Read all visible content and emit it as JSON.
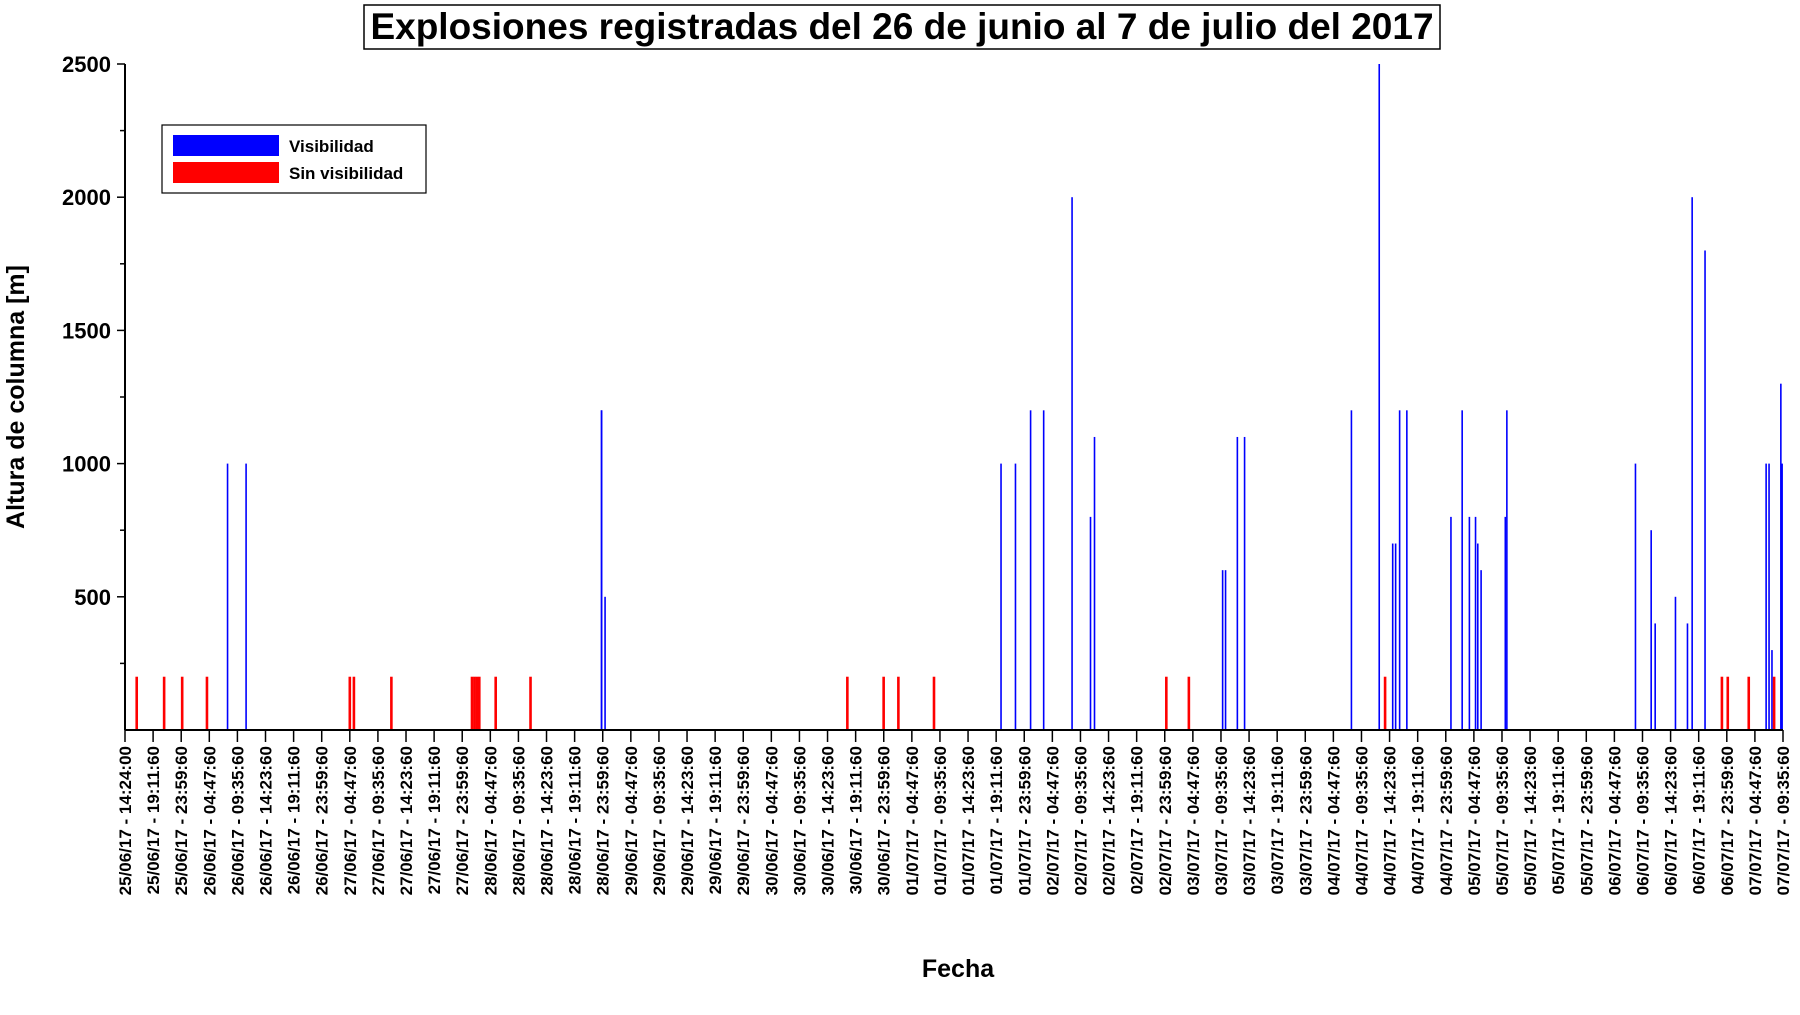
{
  "chart_data": {
    "type": "bar",
    "title": "Explosiones registradas del 26 de junio al 7 de julio del 2017",
    "xlabel": "Fecha",
    "ylabel": "Altura de columna [m]",
    "ylim": [
      0,
      2500
    ],
    "yticks": [
      500,
      1000,
      1500,
      2000,
      2500
    ],
    "grid": false,
    "legend_position": "top-left",
    "xlim": [
      "2017-06-25 14:24",
      "2017-07-07 09:36"
    ],
    "tick_labels": [
      "25/06/17 - 14:24:00",
      "25/06/17 - 19:11:60",
      "25/06/17 - 23:59:60",
      "26/06/17 - 04:47:60",
      "26/06/17 - 09:35:60",
      "26/06/17 - 14:23:60",
      "26/06/17 - 19:11:60",
      "26/06/17 - 23:59:60",
      "27/06/17 - 04:47:60",
      "27/06/17 - 09:35:60",
      "27/06/17 - 14:23:60",
      "27/06/17 - 19:11:60",
      "27/06/17 - 23:59:60",
      "28/06/17 - 04:47:60",
      "28/06/17 - 09:35:60",
      "28/06/17 - 14:23:60",
      "28/06/17 - 19:11:60",
      "28/06/17 - 23:59:60",
      "29/06/17 - 04:47:60",
      "29/06/17 - 09:35:60",
      "29/06/17 - 14:23:60",
      "29/06/17 - 19:11:60",
      "29/06/17 - 23:59:60",
      "30/06/17 - 04:47:60",
      "30/06/17 - 09:35:60",
      "30/06/17 - 14:23:60",
      "30/06/17 - 19:11:60",
      "30/06/17 - 23:59:60",
      "01/07/17 - 04:47:60",
      "01/07/17 - 09:35:60",
      "01/07/17 - 14:23:60",
      "01/07/17 - 19:11:60",
      "01/07/17 - 23:59:60",
      "02/07/17 - 04:47:60",
      "02/07/17 - 09:35:60",
      "02/07/17 - 14:23:60",
      "02/07/17 - 19:11:60",
      "02/07/17 - 23:59:60",
      "03/07/17 - 04:47:60",
      "03/07/17 - 09:35:60",
      "03/07/17 - 14:23:60",
      "03/07/17 - 19:11:60",
      "03/07/17 - 23:59:60",
      "04/07/17 - 04:47:60",
      "04/07/17 - 09:35:60",
      "04/07/17 - 14:23:60",
      "04/07/17 - 19:11:60",
      "04/07/17 - 23:59:60",
      "05/07/17 - 04:47:60",
      "05/07/17 - 09:35:60",
      "05/07/17 - 14:23:60",
      "05/07/17 - 19:11:60",
      "05/07/17 - 23:59:60",
      "06/07/17 - 04:47:60",
      "06/07/17 - 09:35:60",
      "06/07/17 - 14:23:60",
      "06/07/17 - 19:11:60",
      "06/07/17 - 23:59:60",
      "07/07/17 - 04:47:60",
      "07/07/17 - 09:35:60"
    ],
    "series": [
      {
        "name": "Visibilidad",
        "color": "#0000ff",
        "x": [
          "2017-06-26 07:55",
          "2017-06-26 11:05",
          "2017-06-28 23:48",
          "2017-06-28 23:48",
          "2017-06-29 00:24",
          "2017-07-01 20:02",
          "2017-07-01 22:30",
          "2017-07-02 01:05",
          "2017-07-02 03:19",
          "2017-07-02 08:10",
          "2017-07-02 11:19",
          "2017-07-02 12:00",
          "2017-07-03 09:53",
          "2017-07-03 10:23",
          "2017-07-03 12:24",
          "2017-07-03 13:38",
          "2017-07-04 07:53",
          "2017-07-04 12:38",
          "2017-07-04 14:56",
          "2017-07-04 15:26",
          "2017-07-04 16:07",
          "2017-07-04 17:21",
          "2017-07-05 00:53",
          "2017-07-05 02:48",
          "2017-07-05 04:02",
          "2017-07-05 05:05",
          "2017-07-05 05:28",
          "2017-07-05 06:02",
          "2017-07-05 10:10",
          "2017-07-05 10:26",
          "2017-07-06 08:24",
          "2017-07-06 11:05",
          "2017-07-06 11:46",
          "2017-07-06 15:14",
          "2017-07-06 17:17",
          "2017-07-06 18:05",
          "2017-07-06 20:17",
          "2017-07-07 06:43",
          "2017-07-07 07:13",
          "2017-07-07 07:43",
          "2017-07-07 09:14",
          "2017-07-07 09:27"
        ],
        "values": [
          1000,
          1000,
          1200,
          1200,
          500,
          1000,
          1000,
          1200,
          1200,
          2000,
          800,
          1100,
          600,
          600,
          1100,
          1100,
          1200,
          2500,
          700,
          700,
          1200,
          1200,
          800,
          1200,
          800,
          800,
          700,
          600,
          800,
          1200,
          1000,
          750,
          400,
          500,
          400,
          2000,
          1800,
          1000,
          1000,
          300,
          1300,
          1000
        ]
      },
      {
        "name": "Sin visibilidad",
        "color": "#ff0000",
        "x": [
          "2017-06-25 16:24",
          "2017-06-25 21:05",
          "2017-06-26 00:10",
          "2017-06-26 04:24",
          "2017-06-27 04:48",
          "2017-06-27 05:30",
          "2017-06-27 11:54",
          "2017-06-28 01:40",
          "2017-06-28 02:05",
          "2017-06-28 02:30",
          "2017-06-28 02:55",
          "2017-06-28 05:43",
          "2017-06-28 11:40",
          "2017-06-30 17:47",
          "2017-06-30 23:59",
          "2017-07-01 02:30",
          "2017-07-01 08:35",
          "2017-07-03 00:16",
          "2017-07-03 04:07",
          "2017-07-04 13:38",
          "2017-07-06 23:10",
          "2017-07-07 00:10",
          "2017-07-07 03:45",
          "2017-07-07 08:05"
        ],
        "values": [
          200,
          200,
          200,
          200,
          200,
          200,
          200,
          200,
          200,
          200,
          200,
          200,
          200,
          200,
          200,
          200,
          200,
          200,
          200,
          200,
          200,
          200,
          200,
          200
        ]
      }
    ]
  }
}
